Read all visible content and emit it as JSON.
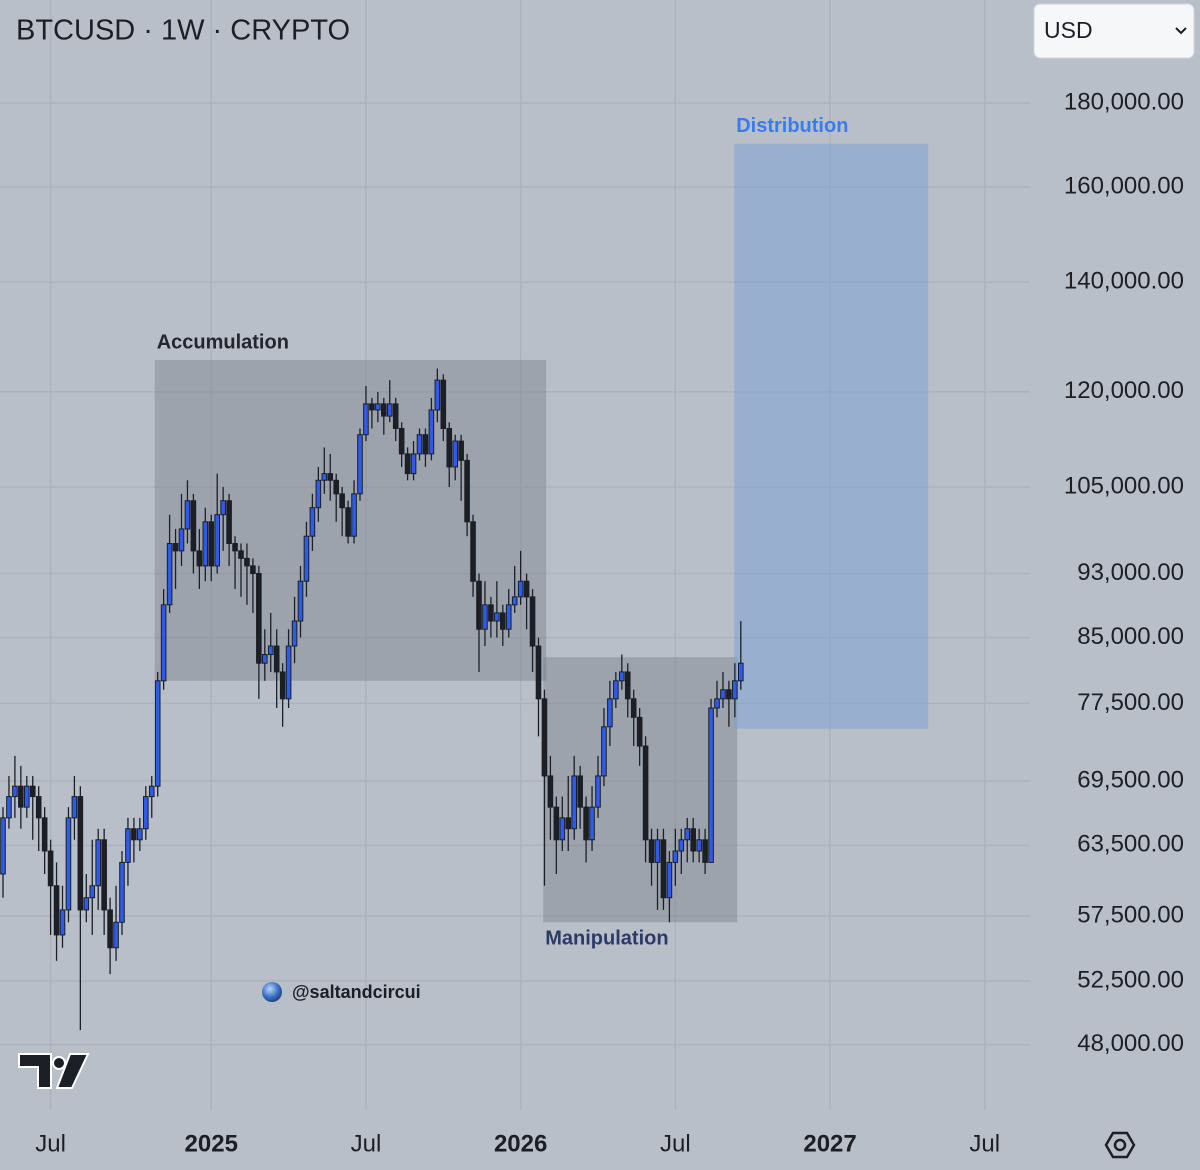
{
  "chart_data": {
    "type": "candlestick",
    "title": "BTCUSD · 1W · CRYPTO",
    "currency": "USD",
    "watermark": "@saltandcircui",
    "yscale": "log",
    "grid": true,
    "up_color": "#2f5bea",
    "down_color": "#1c1f26",
    "ylim": [
      43800,
      208000
    ],
    "yticks": [
      {
        "value": 180000,
        "label": "180,000.00"
      },
      {
        "value": 160000,
        "label": "160,000.00"
      },
      {
        "value": 140000,
        "label": "140,000.00"
      },
      {
        "value": 120000,
        "label": "120,000.00"
      },
      {
        "value": 105000,
        "label": "105,000.00"
      },
      {
        "value": 93000,
        "label": "93,000.00"
      },
      {
        "value": 85000,
        "label": "85,000.00"
      },
      {
        "value": 77500,
        "label": "77,500.00"
      },
      {
        "value": 69500,
        "label": "69,500.00"
      },
      {
        "value": 63500,
        "label": "63,500.00"
      },
      {
        "value": 57500,
        "label": "57,500.00"
      },
      {
        "value": 52500,
        "label": "52,500.00"
      },
      {
        "value": 48000,
        "label": "48,000.00"
      }
    ],
    "categories": [
      null,
      null,
      null,
      null,
      null,
      null,
      null,
      null,
      "Jul",
      null,
      null,
      null,
      null,
      null,
      null,
      null,
      null,
      null,
      null,
      null,
      null,
      null,
      null,
      null,
      null,
      null,
      null,
      null,
      null,
      null,
      null,
      null,
      null,
      null,
      null,
      "2025",
      null,
      null,
      null,
      null,
      null,
      null,
      null,
      null,
      null,
      null,
      null,
      null,
      null,
      null,
      null,
      null,
      null,
      null,
      null,
      null,
      null,
      null,
      null,
      null,
      null,
      "Jul",
      null,
      null,
      null,
      null,
      null,
      null,
      null,
      null,
      null,
      null,
      null,
      null,
      null,
      null,
      null,
      null,
      null,
      null,
      null,
      null,
      null,
      null,
      null,
      null,
      null,
      "2026",
      null,
      null,
      null,
      null,
      null,
      null,
      null,
      null,
      null,
      null,
      null,
      null,
      null,
      null,
      null,
      null,
      null,
      null,
      null,
      null,
      null,
      null,
      null,
      null,
      null,
      "Jul",
      null,
      null,
      null,
      null,
      null,
      null,
      null,
      null,
      null,
      null,
      null,
      null,
      null,
      null,
      null,
      null,
      null,
      null,
      null,
      null,
      null,
      null,
      null,
      null,
      null,
      "2027",
      null,
      null,
      null,
      null,
      null,
      null,
      null,
      null,
      null,
      null,
      null,
      null,
      null,
      null,
      null,
      null,
      null,
      null,
      null,
      null,
      null,
      null,
      null,
      null,
      null,
      "Jul"
    ],
    "open": [
      61000,
      66000,
      68000,
      69000,
      67000,
      69000,
      68000,
      66000,
      63000,
      60000,
      56000,
      58000,
      66000,
      68000,
      58000,
      59000,
      60000,
      64000,
      58000,
      55000,
      57000,
      62000,
      65000,
      64000,
      65000,
      68000,
      69000,
      80000,
      89000,
      97000,
      96000,
      99000,
      103000,
      96000,
      94000,
      100000,
      94000,
      101000,
      103000,
      97000,
      96000,
      95000,
      94000,
      93000,
      82000,
      83000,
      84000,
      81000,
      78000,
      84000,
      87000,
      92000,
      98000,
      102000,
      106000,
      107000,
      106000,
      104000,
      102000,
      98000,
      104000,
      113000,
      118000,
      117000,
      118000,
      116000,
      118000,
      114000,
      110000,
      107000,
      110000,
      113000,
      110000,
      117000,
      122000,
      114000,
      108000,
      112000,
      109000,
      100000,
      92000,
      86000,
      89000,
      87000,
      88000,
      86000,
      89000,
      90000,
      92000,
      90000,
      84000,
      78000,
      70000,
      67000,
      64000,
      66000,
      65000,
      70000,
      67000,
      64000,
      67000,
      70000,
      75000,
      78000,
      80000,
      81000,
      78000,
      76000,
      73000,
      64000,
      62000,
      64000,
      59000,
      62000,
      63000,
      64000,
      65000,
      63000,
      64000,
      62000,
      77000,
      78000,
      79000,
      78000,
      80000,
      null,
      null,
      null,
      null,
      null,
      null,
      null,
      null,
      null,
      null,
      null,
      null,
      null,
      null,
      null,
      null,
      null,
      null,
      null,
      null,
      null,
      null,
      null,
      null,
      null,
      null,
      null,
      null,
      null,
      null,
      null,
      null,
      null,
      null,
      null,
      null,
      null,
      null,
      null,
      null,
      null
    ],
    "high": [
      67000,
      70000,
      72000,
      71000,
      70000,
      70000,
      69000,
      67000,
      64000,
      62000,
      60000,
      67000,
      70000,
      69000,
      61000,
      64000,
      65000,
      65000,
      59000,
      60000,
      63000,
      66000,
      66000,
      66000,
      69000,
      70000,
      81000,
      91000,
      101000,
      99000,
      104000,
      106000,
      104000,
      99000,
      102000,
      101000,
      107000,
      105000,
      104000,
      98000,
      97000,
      97000,
      95000,
      94000,
      86000,
      88000,
      86000,
      82000,
      86000,
      90000,
      94000,
      100000,
      104000,
      108000,
      111000,
      110000,
      107000,
      105000,
      103000,
      106000,
      114000,
      121000,
      119000,
      120000,
      119000,
      122000,
      119000,
      115000,
      111000,
      112000,
      114000,
      114000,
      119000,
      124000,
      123000,
      115000,
      113000,
      113000,
      110000,
      101000,
      93000,
      92000,
      90000,
      92000,
      89000,
      91000,
      94000,
      96000,
      93000,
      91000,
      85000,
      79000,
      72000,
      68000,
      68000,
      70000,
      72000,
      71000,
      68000,
      69000,
      72000,
      77000,
      80000,
      81000,
      83000,
      82000,
      79000,
      77000,
      74000,
      65000,
      65000,
      65000,
      63000,
      65000,
      65000,
      66000,
      66000,
      65000,
      65000,
      78000,
      80000,
      81000,
      80000,
      82000,
      87000,
      null,
      null,
      null,
      null,
      null,
      null,
      null,
      null,
      null,
      null,
      null,
      null,
      null,
      null,
      null,
      null,
      null,
      null,
      null,
      null,
      null,
      null,
      null,
      null,
      null,
      null,
      null,
      null,
      null,
      null,
      null,
      null,
      null,
      null,
      null,
      null,
      null,
      null,
      null,
      null,
      null
    ],
    "low": [
      59000,
      65000,
      66000,
      65000,
      66000,
      64000,
      63000,
      61000,
      56000,
      54000,
      55000,
      57000,
      64000,
      49000,
      57000,
      56000,
      58000,
      56000,
      53000,
      54000,
      56000,
      60000,
      62000,
      63000,
      64000,
      66000,
      68000,
      79000,
      88000,
      91000,
      94000,
      97000,
      93000,
      91000,
      92000,
      92000,
      93000,
      96000,
      94000,
      91000,
      90000,
      89000,
      88000,
      78000,
      80000,
      81000,
      77000,
      75000,
      77000,
      82000,
      85000,
      90000,
      96000,
      100000,
      104000,
      103000,
      100000,
      98000,
      97000,
      97000,
      103000,
      112000,
      114000,
      115000,
      113000,
      115000,
      112000,
      108000,
      106000,
      106000,
      109000,
      108000,
      109000,
      115000,
      112000,
      105000,
      106000,
      103000,
      98000,
      90000,
      81000,
      84000,
      85000,
      85000,
      84000,
      85000,
      88000,
      89000,
      86000,
      81000,
      74000,
      60000,
      64000,
      61000,
      63000,
      63000,
      64000,
      65000,
      62000,
      63000,
      66000,
      69000,
      73000,
      77000,
      79000,
      76000,
      73000,
      71000,
      62000,
      60000,
      58000,
      58000,
      57000,
      60000,
      61000,
      62000,
      62000,
      62000,
      61000,
      62000,
      76000,
      77000,
      75000,
      76000,
      79000,
      null,
      null,
      null,
      null,
      null,
      null,
      null,
      null,
      null,
      null,
      null,
      null,
      null,
      null,
      null,
      null,
      null,
      null,
      null,
      null,
      null,
      null,
      null,
      null,
      null,
      null,
      null,
      null,
      null,
      null,
      null,
      null,
      null,
      null,
      null,
      null,
      null,
      null,
      null,
      null,
      null
    ],
    "close": [
      66000,
      68000,
      69000,
      67000,
      69000,
      68000,
      66000,
      63000,
      60000,
      56000,
      58000,
      66000,
      68000,
      58000,
      59000,
      60000,
      64000,
      58000,
      55000,
      57000,
      62000,
      65000,
      64000,
      65000,
      68000,
      69000,
      80000,
      89000,
      97000,
      96000,
      99000,
      103000,
      96000,
      94000,
      100000,
      94000,
      101000,
      103000,
      97000,
      96000,
      95000,
      94000,
      93000,
      82000,
      83000,
      84000,
      81000,
      78000,
      84000,
      87000,
      92000,
      98000,
      102000,
      106000,
      107000,
      106000,
      104000,
      102000,
      98000,
      104000,
      113000,
      118000,
      117000,
      118000,
      116000,
      118000,
      114000,
      110000,
      107000,
      110000,
      113000,
      110000,
      117000,
      122000,
      114000,
      108000,
      112000,
      109000,
      100000,
      92000,
      86000,
      89000,
      87000,
      88000,
      86000,
      89000,
      90000,
      92000,
      90000,
      84000,
      78000,
      70000,
      67000,
      64000,
      66000,
      65000,
      70000,
      67000,
      64000,
      67000,
      70000,
      75000,
      78000,
      80000,
      81000,
      78000,
      76000,
      73000,
      64000,
      62000,
      64000,
      59000,
      62000,
      63000,
      64000,
      65000,
      63000,
      64000,
      62000,
      77000,
      78000,
      79000,
      78000,
      80000,
      82000,
      null,
      null,
      null,
      null,
      null,
      null,
      null,
      null,
      null,
      null,
      null,
      null,
      null,
      null,
      null,
      null,
      null,
      null,
      null,
      null,
      null,
      null,
      null,
      null,
      null,
      null,
      null,
      null,
      null,
      null,
      null,
      null,
      null,
      null,
      null,
      null,
      null,
      null,
      null,
      null,
      null
    ],
    "zones": [
      {
        "label": "Accumulation",
        "low": 80000,
        "high": 125500,
        "color": "rgba(112,118,128,0.38)",
        "label_color": "#23262e"
      },
      {
        "label": "Manipulation",
        "low": 57000,
        "high": 82700,
        "color": "rgba(112,118,128,0.38)",
        "label_color": "#2b3a67"
      },
      {
        "label": "Distribution",
        "low": 74800,
        "high": 170000,
        "color": "rgba(120,160,215,0.5)",
        "label_color": "#3a7bf0"
      }
    ]
  }
}
